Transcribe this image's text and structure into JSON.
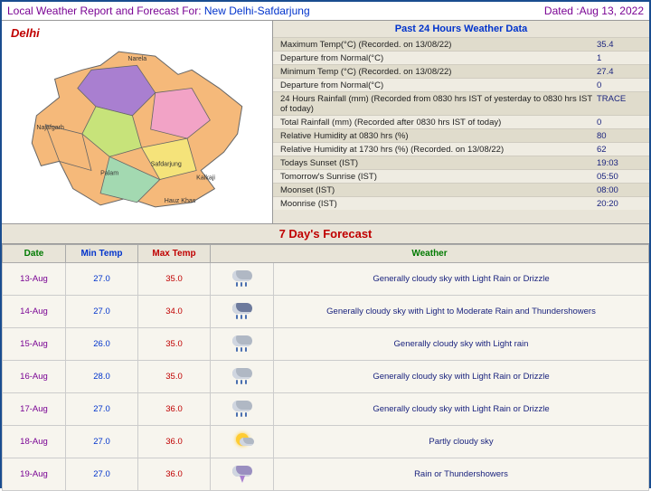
{
  "title_prefix": "Local Weather Report and Forecast For:",
  "location": "New Delhi-Safdarjung",
  "dated_label": "Dated :Aug 13, 2022",
  "region_label": "Delhi",
  "past24_header": "Past 24 Hours Weather Data",
  "data_rows": [
    {
      "label": "Maximum Temp(°C) (Recorded. on 13/08/22)",
      "val": "35.4"
    },
    {
      "label": "Departure from Normal(°C)",
      "val": "1"
    },
    {
      "label": "Minimum Temp (°C) (Recorded. on 13/08/22)",
      "val": "27.4"
    },
    {
      "label": "Departure from Normal(°C)",
      "val": "0"
    },
    {
      "label": "24 Hours Rainfall (mm) (Recorded from 0830 hrs IST of yesterday to 0830 hrs IST of today)",
      "val": "TRACE"
    },
    {
      "label": "Total Rainfall (mm) (Recorded after 0830 hrs IST of today)",
      "val": "0"
    },
    {
      "label": "Relative Humidity at 0830 hrs (%)",
      "val": "80"
    },
    {
      "label": "Relative Humidity at 1730 hrs (%) (Recorded. on 13/08/22)",
      "val": "62"
    },
    {
      "label": "Todays Sunset (IST)",
      "val": "19:03"
    },
    {
      "label": "Tomorrow's Sunrise (IST)",
      "val": "05:50"
    },
    {
      "label": "Moonset (IST)",
      "val": "08:00"
    },
    {
      "label": "Moonrise (IST)",
      "val": "20:20"
    }
  ],
  "forecast_header": "7 Day's Forecast",
  "fc_headers": {
    "date": "Date",
    "min": "Min Temp",
    "max": "Max Temp",
    "wx": "Weather"
  },
  "forecast": [
    {
      "date": "13-Aug",
      "min": "27.0",
      "max": "35.0",
      "icon": "rain-light",
      "wx": "Generally cloudy sky with Light Rain or Drizzle"
    },
    {
      "date": "14-Aug",
      "min": "27.0",
      "max": "34.0",
      "icon": "rain-thunder",
      "wx": "Generally cloudy sky with Light to Moderate Rain and Thundershowers"
    },
    {
      "date": "15-Aug",
      "min": "26.0",
      "max": "35.0",
      "icon": "rain-light",
      "wx": "Generally cloudy sky with Light rain"
    },
    {
      "date": "16-Aug",
      "min": "28.0",
      "max": "35.0",
      "icon": "rain-light",
      "wx": "Generally cloudy sky with Light Rain or Drizzle"
    },
    {
      "date": "17-Aug",
      "min": "27.0",
      "max": "36.0",
      "icon": "rain-light",
      "wx": "Generally cloudy sky with Light Rain or Drizzle"
    },
    {
      "date": "18-Aug",
      "min": "27.0",
      "max": "36.0",
      "icon": "partly-cloudy",
      "wx": "Partly cloudy sky"
    },
    {
      "date": "19-Aug",
      "min": "27.0",
      "max": "36.0",
      "icon": "thunder",
      "wx": "Rain or Thundershowers"
    }
  ],
  "map": {
    "district_colors": [
      "#f5b97a",
      "#f5e37a",
      "#a97fd0",
      "#f2a3c6",
      "#c7e37a",
      "#f5b97a",
      "#a3d9b1",
      "#f5e37a",
      "#f2a3c6"
    ]
  }
}
